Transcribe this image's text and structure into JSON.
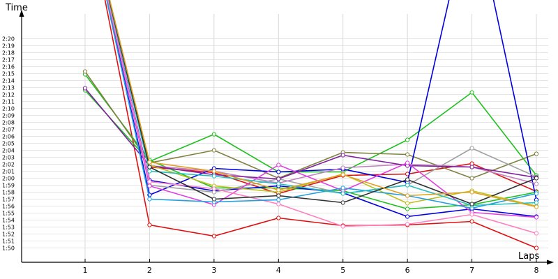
{
  "chart_data": {
    "type": "line",
    "xlabel": "Laps",
    "ylabel": "Time",
    "x": [
      1,
      2,
      3,
      4,
      5,
      6,
      7,
      8
    ],
    "y_unit": "m:ss",
    "ylim": [
      "1:49",
      "2:21"
    ],
    "grid": true,
    "legend": "none",
    "y_ticks": [
      "1:50",
      "1:51",
      "1:52",
      "1:53",
      "1:54",
      "1:55",
      "1:56",
      "1:57",
      "1:58",
      "1:59",
      "2:00",
      "2:01",
      "2:02",
      "2:03",
      "2:04",
      "2:05",
      "2:06",
      "2:07",
      "2:08",
      "2:09",
      "2:10",
      "2:11",
      "2:12",
      "2:13",
      "2:14",
      "2:15",
      "2:16",
      "2:17",
      "2:18",
      "2:19",
      "2:20"
    ],
    "series": [
      {
        "color": "#e01010",
        "values": [
          "2:40",
          "1:53.3",
          "1:51.7",
          "1:54.3",
          "1:53.2",
          "1:53.3",
          "1:53.8",
          "1:50.0"
        ]
      },
      {
        "color": "#e01010",
        "values": [
          "2:40",
          "2:01.6",
          "2:00.8",
          "1:57.8",
          "2:00.4",
          "2:00.6",
          "2:02.1",
          "1:58.1"
        ]
      },
      {
        "color": "#20c020",
        "values": [
          "2:12.6",
          "2:02.4",
          "2:06.3",
          "2:00.9",
          "2:00.9",
          "2:05.5",
          "2:12.3",
          "2:00.4"
        ]
      },
      {
        "color": "#20c020",
        "values": [
          "2:14.9",
          "2:02.6",
          "1:58.6",
          "1:58.6",
          "1:58.2",
          "1:55.6",
          "1:56.2",
          "1:58.0"
        ]
      },
      {
        "color": "#808040",
        "values": [
          "2:15.3",
          "2:02.2",
          "2:04.0",
          "2:00.0",
          "2:03.7",
          "2:03.4",
          "2:00.0",
          "2:03.5"
        ]
      },
      {
        "color": "#0000e0",
        "values": [
          "2:40",
          "1:57.6",
          "2:01.4",
          "2:00.9",
          "2:01.3",
          "1:59.4",
          "2:40",
          "1:56.9"
        ]
      },
      {
        "color": "#0000e0",
        "values": [
          "2:40",
          "1:59.7",
          "1:58.2",
          "1:58.9",
          "1:57.9",
          "1:54.5",
          "1:55.6",
          "1:54.5"
        ]
      },
      {
        "color": "#a0a0a0",
        "values": [
          "2:40",
          "1:59.0",
          "1:58.0",
          "1:59.9",
          "1:57.8",
          "1:59.0",
          "2:04.3",
          "2:00.2"
        ]
      },
      {
        "color": "#c080c0",
        "values": [
          "2:40",
          "2:01.8",
          "2:01.0",
          "1:59.3",
          "2:01.5",
          "2:02.0",
          "2:01.6",
          "1:59.2"
        ]
      },
      {
        "color": "#8020a0",
        "values": [
          "2:12.9",
          "2:01.8",
          "2:00.5",
          "1:59.9",
          "2:03.3",
          "2:01.8",
          "2:01.6",
          "2:00.1"
        ]
      },
      {
        "color": "#c0c020",
        "values": [
          "2:40",
          "2:01.9",
          "1:58.9",
          "1:58.0",
          "2:00.6",
          "1:56.4",
          "1:58.2",
          "1:56.0"
        ]
      },
      {
        "color": "#e040e0",
        "values": [
          "2:40",
          "1:58.9",
          "1:56.2",
          "2:01.9",
          "1:58.2",
          "2:02.2",
          "1:55.1",
          "1:54.4"
        ]
      },
      {
        "color": "#ff80c0",
        "values": [
          "2:40",
          "1:59.5",
          "1:58.5",
          "1:56.3",
          "1:53.1",
          "1:53.4",
          "1:54.8",
          "1:52.1"
        ]
      },
      {
        "color": "#20a0e0",
        "values": [
          "2:40",
          "1:57.0",
          "1:56.6",
          "1:56.9",
          "1:58.6",
          "1:57.5",
          "1:55.7",
          "1:57.8"
        ]
      },
      {
        "color": "#20c0c0",
        "values": [
          "2:40",
          "2:01.0",
          "2:00.3",
          "1:59.2",
          "1:57.8",
          "1:59.0",
          "1:56.1",
          "1:56.5"
        ]
      },
      {
        "color": "#303030",
        "values": [
          "2:40",
          "2:01.6",
          "1:57.0",
          "1:57.5",
          "1:56.5",
          "1:59.8",
          "1:56.3",
          "2:00.0"
        ]
      },
      {
        "color": "#e0a020",
        "values": [
          "2:40",
          "2:02.3",
          "2:01.0",
          "1:58.3",
          "2:00.5",
          "1:57.5",
          "1:58.0",
          "1:55.9"
        ]
      }
    ]
  }
}
